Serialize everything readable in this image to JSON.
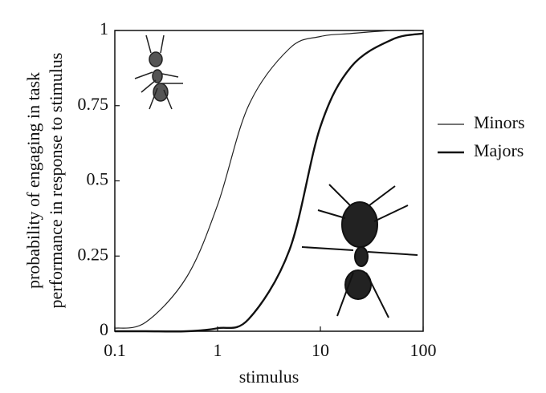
{
  "chart_data": {
    "type": "line",
    "ylabel": [
      "probability of engaging in task",
      "performance in response to stimulus"
    ],
    "xlabel": "stimulus",
    "xscale": "log",
    "xlim": [
      0.1,
      100
    ],
    "xticks": [
      0.1,
      1,
      10,
      100
    ],
    "ylim": [
      0,
      1
    ],
    "yticks": [
      0,
      0.25,
      0.5,
      0.75,
      1
    ],
    "legend": "right",
    "series": [
      {
        "name": "Minors",
        "color": "#222222",
        "width": 1.2,
        "x": [
          0.1,
          0.2,
          0.5,
          1,
          2,
          5,
          10,
          20,
          50,
          100
        ],
        "values": [
          0.01,
          0.03,
          0.18,
          0.42,
          0.75,
          0.94,
          0.98,
          0.99,
          1,
          1
        ]
      },
      {
        "name": "Majors",
        "color": "#111111",
        "width": 2.4,
        "x": [
          0.1,
          0.2,
          0.5,
          1,
          2,
          5,
          10,
          20,
          50,
          100
        ],
        "values": [
          0,
          0,
          0,
          0.01,
          0.04,
          0.27,
          0.68,
          0.88,
          0.97,
          0.99
        ]
      }
    ]
  }
}
